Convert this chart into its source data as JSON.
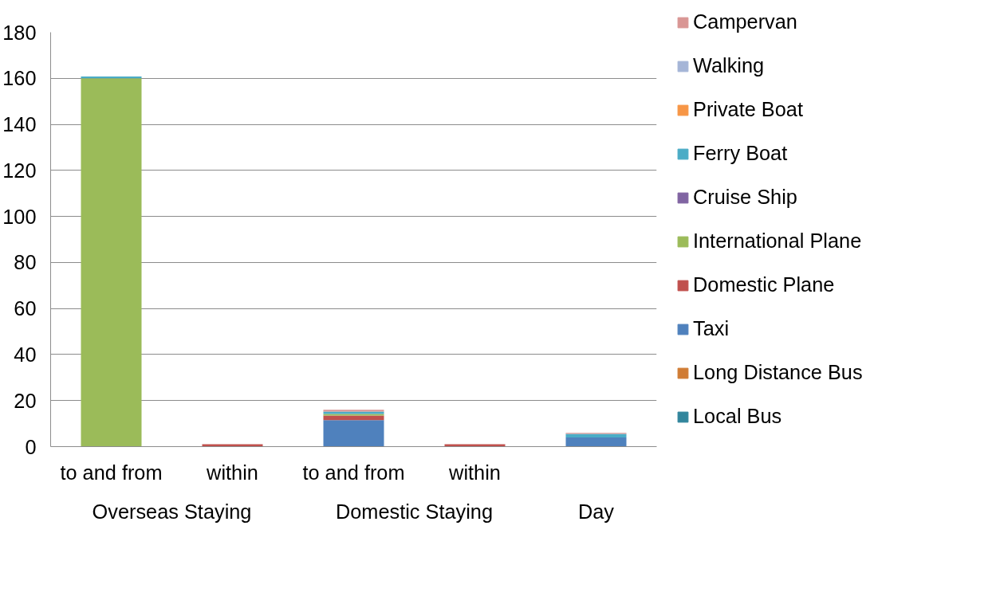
{
  "chart_data": {
    "type": "bar",
    "stacked": true,
    "categories": [
      "to and from",
      "within",
      "to and from",
      "within",
      null
    ],
    "annotations": [
      "Overseas Staying",
      "Domestic Staying",
      "Day"
    ],
    "series": [
      {
        "name": "Local Bus",
        "color": "#31859c",
        "values": [
          0,
          0,
          0,
          0,
          0
        ]
      },
      {
        "name": "Long Distance Bus",
        "color": "#d07c35",
        "values": [
          0,
          0,
          0,
          0,
          0
        ]
      },
      {
        "name": "Taxi",
        "color": "#4f81bd",
        "values": [
          0,
          0,
          11.5,
          0,
          4
        ]
      },
      {
        "name": "Domestic Plane",
        "color": "#c0504d",
        "values": [
          0,
          1,
          2,
          1,
          0
        ]
      },
      {
        "name": "International Plane",
        "color": "#9bbb59",
        "values": [
          160,
          0,
          0.7,
          0,
          0
        ]
      },
      {
        "name": "Cruise Ship",
        "color": "#8064a2",
        "values": [
          0,
          0,
          0,
          0,
          0
        ]
      },
      {
        "name": "Ferry Boat",
        "color": "#4bacc6",
        "values": [
          0.8,
          0,
          1,
          0,
          1.5
        ]
      },
      {
        "name": "Private Boat",
        "color": "#f79646",
        "values": [
          0,
          0,
          0,
          0,
          0
        ]
      },
      {
        "name": "Walking",
        "color": "#a5b5d7",
        "values": [
          0,
          0,
          0,
          0,
          0
        ]
      },
      {
        "name": "Campervan",
        "color": "#d99694",
        "values": [
          0,
          0,
          0.8,
          0,
          0.5
        ]
      }
    ],
    "ylim": [
      0,
      180
    ],
    "yticks": [
      0,
      20,
      40,
      60,
      80,
      100,
      120,
      140,
      160,
      180
    ],
    "grid": "y",
    "legend": "right"
  }
}
